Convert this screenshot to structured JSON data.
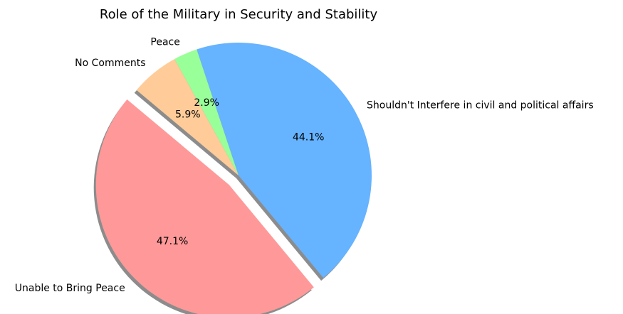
{
  "chart_data": {
    "type": "pie",
    "title": "Role of the Military in Security and Stability",
    "start_angle_deg": 140,
    "direction": "counterclockwise",
    "shadow": true,
    "slices": [
      {
        "label": "Unable to Bring Peace",
        "value": 47.1,
        "pct_label": "47.1%",
        "color": "#ff9999",
        "explode": 0.1
      },
      {
        "label": "Shouldn't Interfere in civil and political affairs",
        "value": 44.1,
        "pct_label": "44.1%",
        "color": "#66b3ff",
        "explode": 0
      },
      {
        "label": "Peace",
        "value": 2.9,
        "pct_label": "2.9%",
        "color": "#99ff99",
        "explode": 0
      },
      {
        "label": "No Comments",
        "value": 5.9,
        "pct_label": "5.9%",
        "color": "#ffcc99",
        "explode": 0
      }
    ]
  }
}
